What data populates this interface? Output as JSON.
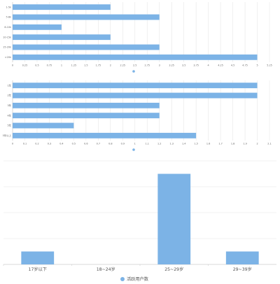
{
  "colors": {
    "bar": "#7cb3e6",
    "grid": "#e6e6e6",
    "axis": "#cfcfcf"
  },
  "chart_data": [
    {
      "type": "bar",
      "orientation": "horizontal",
      "categories": [
        "cat-1",
        "cat-2",
        "cat-3",
        "cat-4",
        "cat-5",
        "cat-6"
      ],
      "category_labels": [
        "1-5k",
        "5-8k",
        "8-10k",
        "10-15k",
        "15-20k",
        ">20k"
      ],
      "values": [
        2,
        3,
        1,
        2,
        3,
        5
      ],
      "legend": "",
      "xlim": [
        0,
        5.25
      ],
      "x_ticks": [
        0,
        0.25,
        0.5,
        0.75,
        1,
        1.25,
        1.5,
        1.75,
        2,
        2.25,
        2.5,
        2.75,
        3,
        3.25,
        3.5,
        3.75,
        4,
        4.25,
        4.5,
        4.75,
        5,
        5.25
      ],
      "x_tick_labels": [
        "0",
        "0.25",
        "0.5",
        "0.75",
        "1",
        "1.25",
        "1.5",
        "1.75",
        "2",
        "2.25",
        "2.5",
        "2.75",
        "3",
        "3.25",
        "3.5",
        "3.75",
        "4",
        "4.25",
        "4.5",
        "4.75",
        "5",
        "5.25"
      ],
      "grid": true,
      "legend_position": "bottom"
    },
    {
      "type": "bar",
      "orientation": "horizontal",
      "categories": [
        "cat-1",
        "cat-2",
        "cat-3",
        "cat-4",
        "cat-5",
        "cat-6"
      ],
      "category_labels": [
        "1年",
        "2年",
        "3年",
        "4年",
        "5年",
        "5年以上"
      ],
      "values": [
        2,
        2,
        1.2,
        1.2,
        0.5,
        1.5
      ],
      "legend": "",
      "xlim": [
        0,
        2.1
      ],
      "x_ticks": [
        0,
        0.1,
        0.2,
        0.3,
        0.4,
        0.5,
        0.6,
        0.7,
        0.8,
        0.9,
        1,
        1.1,
        1.2,
        1.3,
        1.4,
        1.5,
        1.6,
        1.7,
        1.8,
        1.9,
        2,
        2.1
      ],
      "x_tick_labels": [
        "0",
        "0.1",
        "0.2",
        "0.3",
        "0.4",
        "0.5",
        "0.6",
        "0.7",
        "0.8",
        "0.9",
        "1",
        "1.1",
        "1.2",
        "1.3",
        "1.4",
        "1.5",
        "1.6",
        "1.7",
        "1.8",
        "1.9",
        "2",
        "2.1"
      ],
      "grid": true,
      "legend_position": "bottom"
    },
    {
      "type": "bar",
      "orientation": "vertical",
      "categories": [
        "17岁以下",
        "18~24岁",
        "25~29岁",
        "29~39岁"
      ],
      "values": [
        1,
        0,
        7,
        1
      ],
      "legend": "活跃用户数",
      "ylim": [
        0,
        8
      ],
      "y_ticks": [
        0,
        2,
        4,
        6,
        8
      ],
      "grid": true,
      "legend_position": "bottom"
    }
  ]
}
